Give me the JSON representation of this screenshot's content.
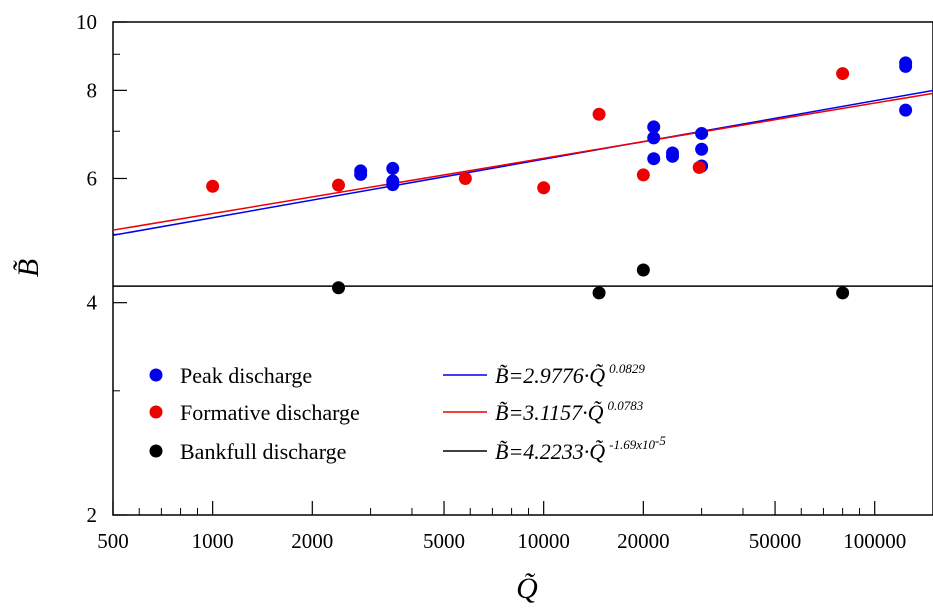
{
  "chart_data": {
    "type": "scatter",
    "xscale": "log",
    "yscale": "log",
    "xlim": [
      500,
      150000
    ],
    "ylim": [
      2,
      10
    ],
    "xlabel": "Q̃",
    "ylabel": "B̃",
    "xticks": [
      500,
      1000,
      2000,
      5000,
      10000,
      20000,
      50000,
      100000
    ],
    "xtick_labels": [
      "500",
      "1000",
      "2000",
      "5000",
      "10000",
      "20000",
      "50000",
      "100000"
    ],
    "yticks": [
      2,
      4,
      6,
      8,
      10
    ],
    "ytick_labels": [
      "2",
      "4",
      "6",
      "8",
      "10"
    ],
    "grid": false,
    "legend_position": "lower-left",
    "series": [
      {
        "name": "Peak discharge",
        "color": "#0000ee",
        "points": [
          {
            "x": 2800,
            "y": 6.15
          },
          {
            "x": 2800,
            "y": 6.08
          },
          {
            "x": 3500,
            "y": 6.2
          },
          {
            "x": 3500,
            "y": 5.95
          },
          {
            "x": 3500,
            "y": 5.88
          },
          {
            "x": 21500,
            "y": 7.1
          },
          {
            "x": 21500,
            "y": 6.85
          },
          {
            "x": 21500,
            "y": 6.4
          },
          {
            "x": 24500,
            "y": 6.52
          },
          {
            "x": 24500,
            "y": 6.45
          },
          {
            "x": 30000,
            "y": 6.95
          },
          {
            "x": 30000,
            "y": 6.6
          },
          {
            "x": 30000,
            "y": 6.25
          },
          {
            "x": 124000,
            "y": 8.75
          },
          {
            "x": 124000,
            "y": 8.65
          },
          {
            "x": 124000,
            "y": 7.5
          }
        ]
      },
      {
        "name": "Formative discharge",
        "color": "#ee0000",
        "points": [
          {
            "x": 1000,
            "y": 5.85
          },
          {
            "x": 2400,
            "y": 5.87
          },
          {
            "x": 5800,
            "y": 6.0
          },
          {
            "x": 10000,
            "y": 5.82
          },
          {
            "x": 14700,
            "y": 7.4
          },
          {
            "x": 20000,
            "y": 6.07
          },
          {
            "x": 29500,
            "y": 6.22
          },
          {
            "x": 80000,
            "y": 8.45
          }
        ]
      },
      {
        "name": "Bankfull discharge",
        "color": "#000000",
        "points": [
          {
            "x": 2400,
            "y": 4.2
          },
          {
            "x": 14700,
            "y": 4.13
          },
          {
            "x": 20000,
            "y": 4.45
          },
          {
            "x": 80000,
            "y": 4.13
          }
        ]
      }
    ],
    "fits": [
      {
        "label_main": "B̃=2.9776·Q̃",
        "label_exp": "0.0829",
        "a": 2.9776,
        "b": 0.0829,
        "color": "#0000ee"
      },
      {
        "label_main": "B̃=3.1157·Q̃",
        "label_exp": "0.0783",
        "a": 3.1157,
        "b": 0.0783,
        "color": "#ee0000"
      },
      {
        "label_main": "B̃=4.2233·Q̃",
        "label_exp": "-1.69x10",
        "label_exp2": "-5",
        "a": 4.2233,
        "b": -1.69e-05,
        "color": "#000000"
      }
    ]
  }
}
